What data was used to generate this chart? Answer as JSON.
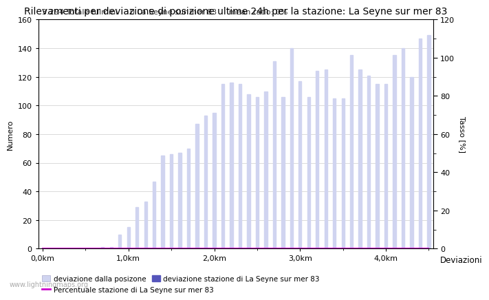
{
  "title": "Rilevamenti per deviazione di posizione ultime 24h per la stazione: La Seyne sur mer 83",
  "subtitle": "3.294 Totale fulmini     0 La Seyne sur mer 83     mean ratio: 0%",
  "xlabel_ticks": [
    "0,0km",
    "1,0km",
    "2,0km",
    "3,0km",
    "4,0km"
  ],
  "xlabel_tick_positions": [
    0,
    10,
    20,
    30,
    40
  ],
  "ylabel_left": "Numero",
  "ylabel_right": "Tasso [%]",
  "ylabel_right_label": "Deviazioni",
  "ylim_left": [
    0,
    160
  ],
  "ylim_right": [
    0,
    120
  ],
  "yticks_left": [
    0,
    20,
    40,
    60,
    80,
    100,
    120,
    140,
    160
  ],
  "yticks_right_major": [
    0,
    20,
    40,
    60,
    80,
    100,
    120
  ],
  "yticks_right_minor": [
    10,
    30,
    50,
    70,
    90,
    110
  ],
  "watermark": "www.lightningmaps.org",
  "bar_width": 0.35,
  "bar_color_light": "#d0d4f0",
  "bar_color_dark": "#5555bb",
  "line_color": "#cc00cc",
  "total_bars": 46,
  "bar_heights_light": [
    0,
    0,
    0,
    0,
    0,
    0,
    0,
    1,
    1,
    10,
    15,
    29,
    33,
    47,
    65,
    66,
    67,
    70,
    87,
    93,
    95,
    115,
    116,
    115,
    108,
    106,
    110,
    131,
    106,
    140,
    117,
    106,
    124,
    125,
    105,
    105,
    135,
    125,
    121,
    115,
    115,
    135,
    140,
    120,
    147,
    149
  ],
  "bar_heights_dark": [
    0,
    0,
    0,
    0,
    0,
    0,
    0,
    0,
    0,
    0,
    0,
    0,
    0,
    0,
    0,
    0,
    0,
    0,
    0,
    0,
    0,
    0,
    0,
    0,
    0,
    0,
    0,
    0,
    0,
    0,
    0,
    0,
    0,
    0,
    0,
    0,
    0,
    0,
    0,
    0,
    0,
    0,
    0,
    0,
    0,
    0
  ],
  "line_values": [
    0,
    0,
    0,
    0,
    0,
    0,
    0,
    0,
    0,
    0,
    0,
    0,
    0,
    0,
    0,
    0,
    0,
    0,
    0,
    0,
    0,
    0,
    0,
    0,
    0,
    0,
    0,
    0,
    0,
    0,
    0,
    0,
    0,
    0,
    0,
    0,
    0,
    0,
    0,
    0,
    0,
    0,
    0,
    0,
    0,
    0
  ],
  "legend_label_light": "deviazione dalla posizone",
  "legend_label_dark": "deviazione stazione di La Seyne sur mer 83",
  "legend_label_line": "Percentuale stazione di La Seyne sur mer 83",
  "background_color": "#ffffff",
  "grid_color": "#cccccc",
  "title_fontsize": 10,
  "axis_fontsize": 8,
  "tick_fontsize": 8,
  "subtitle_fontsize": 8
}
